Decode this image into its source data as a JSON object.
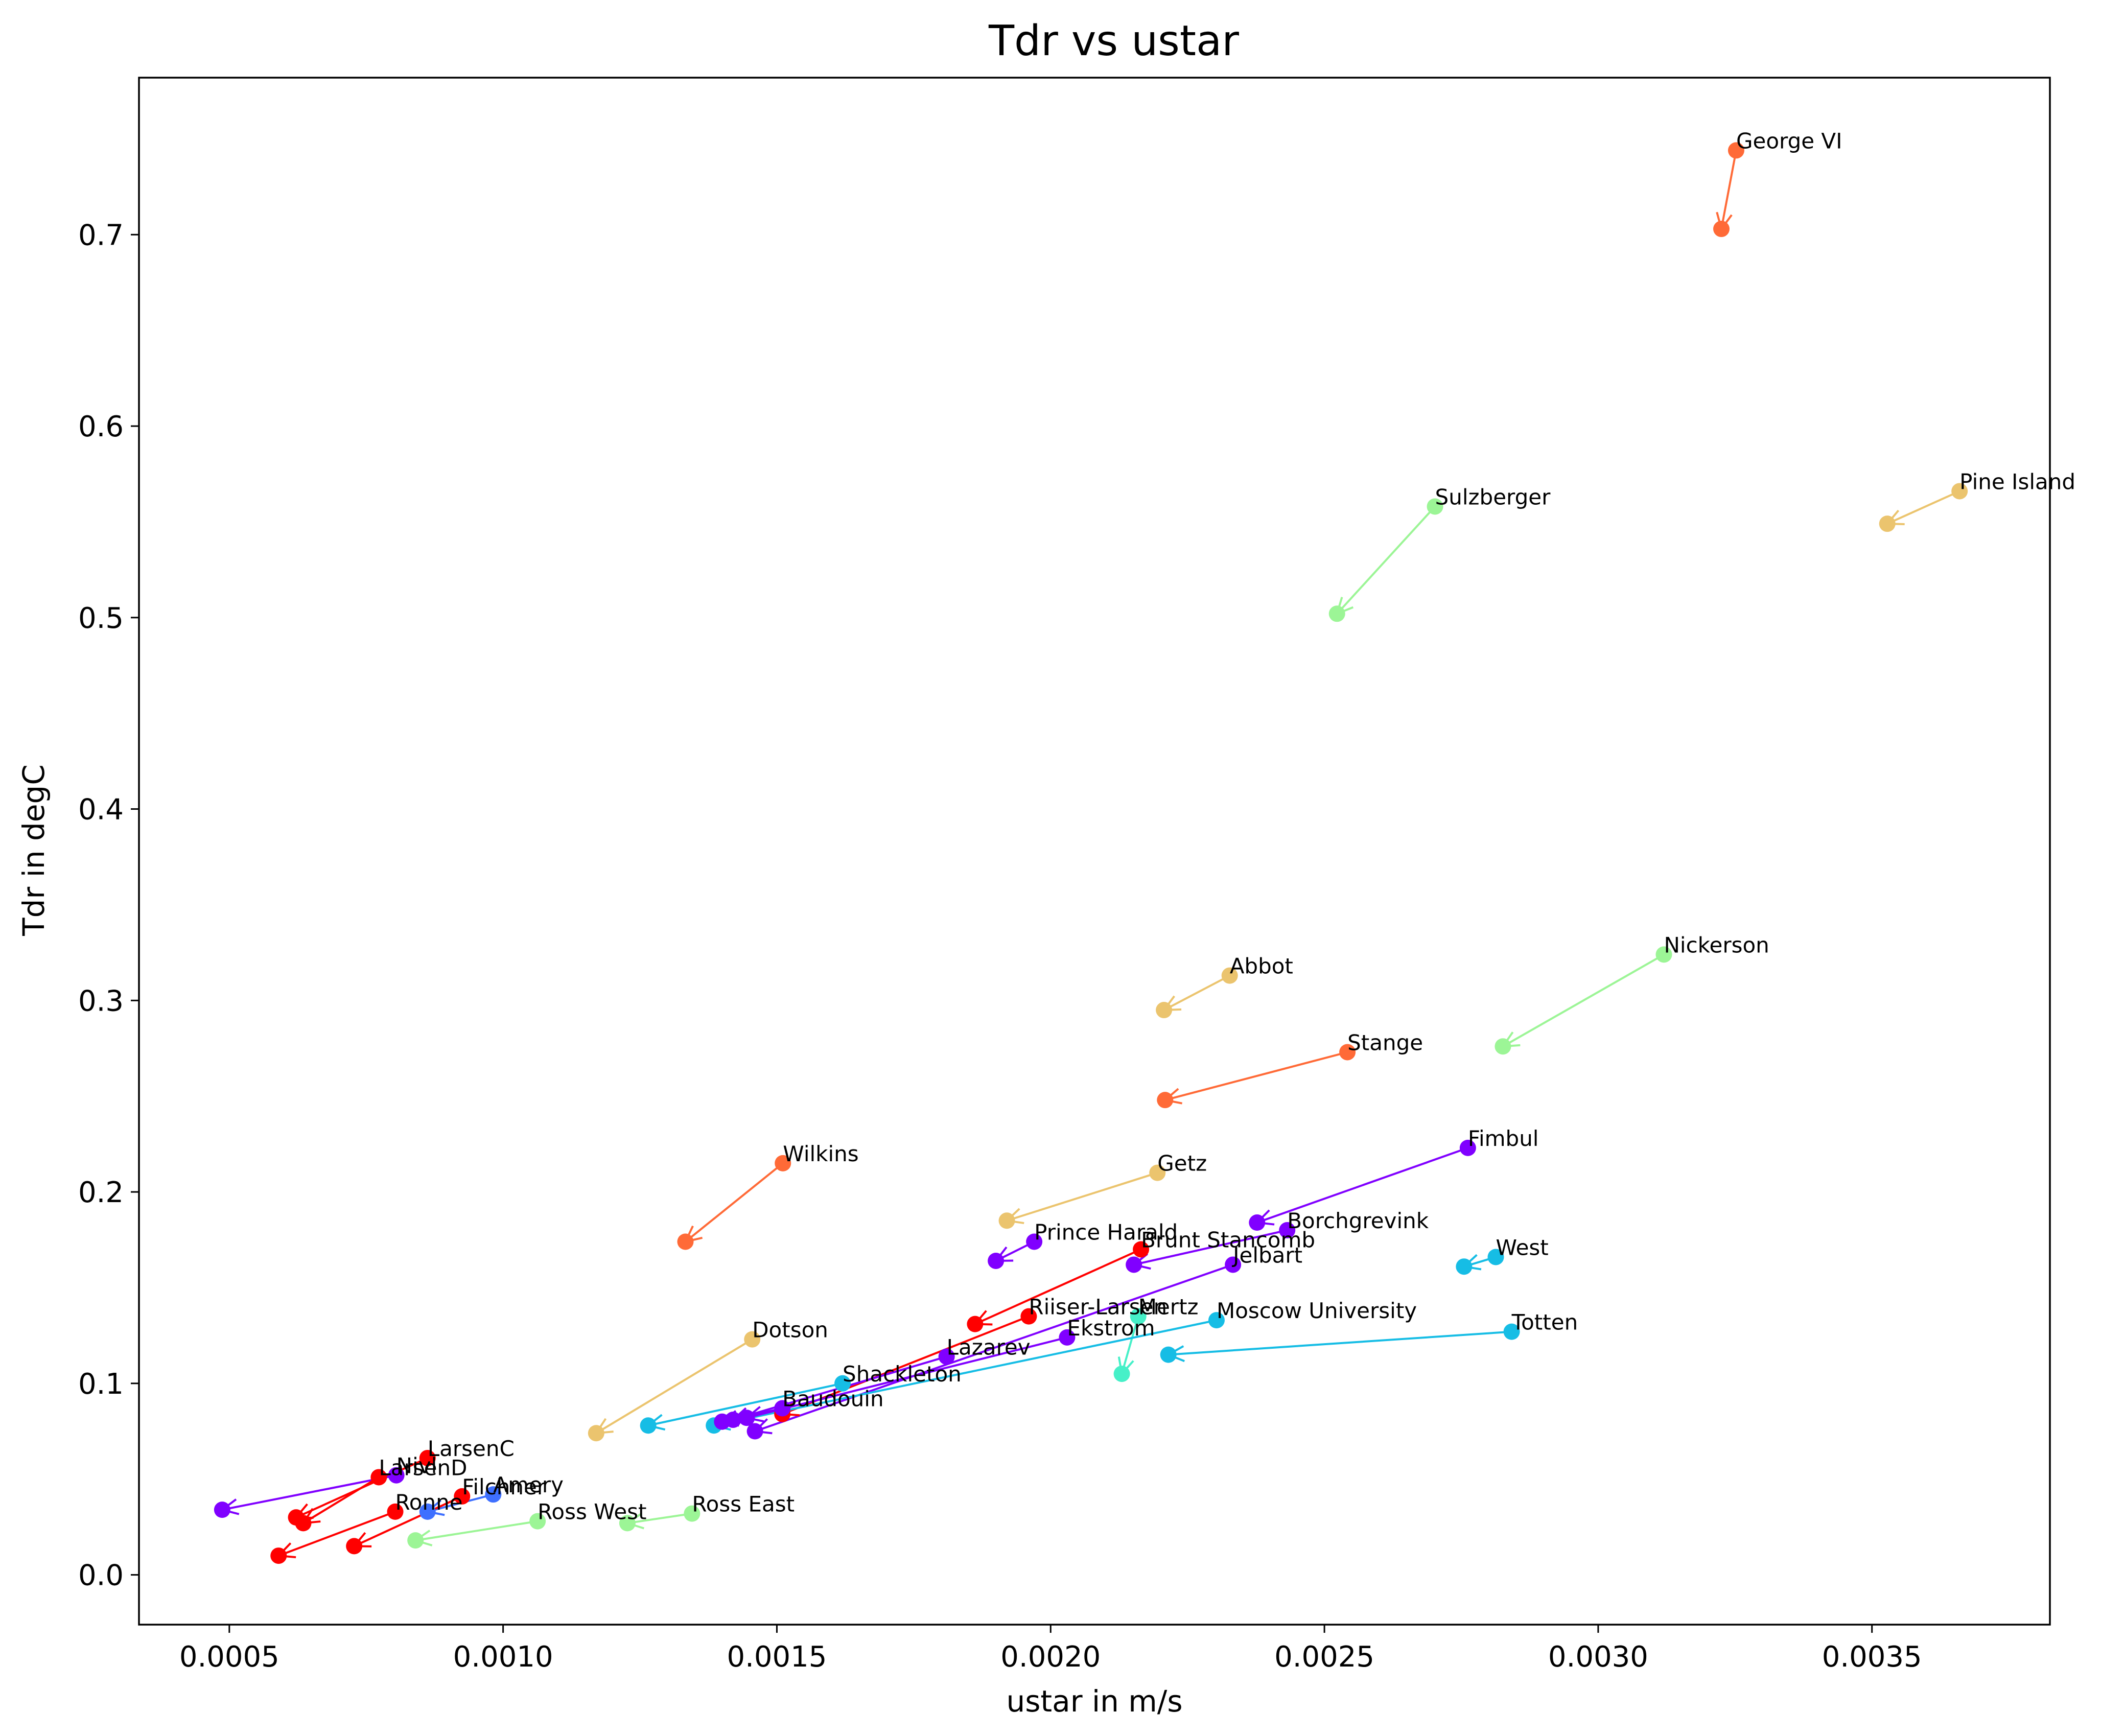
{
  "chart_data": {
    "type": "scatter",
    "title": "Tdr vs ustar",
    "xlabel": "ustar in m/s",
    "ylabel": "Tdr in degC",
    "xlim": [
      0.000335,
      0.003825
    ],
    "ylim": [
      -0.026,
      0.782
    ],
    "xticks": [
      0.0005,
      0.001,
      0.0015,
      0.002,
      0.0025,
      0.003,
      0.0035
    ],
    "xtick_labels": [
      "0.0005",
      "0.0010",
      "0.0015",
      "0.0020",
      "0.0025",
      "0.0030",
      "0.0035"
    ],
    "yticks": [
      0.0,
      0.1,
      0.2,
      0.3,
      0.4,
      0.5,
      0.6,
      0.7
    ],
    "ytick_labels": [
      "0.0",
      "0.1",
      "0.2",
      "0.3",
      "0.4",
      "0.5",
      "0.6",
      "0.7"
    ],
    "grid": false,
    "series": [
      {
        "name": "George VI",
        "color": "#ff6a37",
        "from": [
          0.003252,
          0.744
        ],
        "to": [
          0.003225,
          0.703
        ]
      },
      {
        "name": "Pine Island",
        "color": "#ebc46e",
        "from": [
          0.00366,
          0.566
        ],
        "to": [
          0.003528,
          0.549
        ]
      },
      {
        "name": "Sulzberger",
        "color": "#9cf596",
        "from": [
          0.002702,
          0.558
        ],
        "to": [
          0.002523,
          0.502
        ]
      },
      {
        "name": "Nickerson",
        "color": "#9cf596",
        "from": [
          0.00312,
          0.324
        ],
        "to": [
          0.002826,
          0.276
        ]
      },
      {
        "name": "Abbot",
        "color": "#ebc46e",
        "from": [
          0.002327,
          0.313
        ],
        "to": [
          0.002207,
          0.295
        ]
      },
      {
        "name": "Stange",
        "color": "#ff6a37",
        "from": [
          0.002542,
          0.273
        ],
        "to": [
          0.002209,
          0.248
        ]
      },
      {
        "name": "Fimbul",
        "color": "#8000ff",
        "from": [
          0.002762,
          0.223
        ],
        "to": [
          0.002377,
          0.184
        ]
      },
      {
        "name": "Wilkins",
        "color": "#ff6a37",
        "from": [
          0.001511,
          0.215
        ],
        "to": [
          0.001333,
          0.174
        ]
      },
      {
        "name": "Getz",
        "color": "#ebc46e",
        "from": [
          0.002195,
          0.21
        ],
        "to": [
          0.00192,
          0.185
        ]
      },
      {
        "name": "Borchgrevink",
        "color": "#8000ff",
        "from": [
          0.002432,
          0.18
        ],
        "to": [
          0.002152,
          0.162
        ]
      },
      {
        "name": "West",
        "color": "#16bde5",
        "from": [
          0.002813,
          0.166
        ],
        "to": [
          0.002755,
          0.161
        ]
      },
      {
        "name": "Prince Harald",
        "color": "#8000ff",
        "from": [
          0.00197,
          0.174
        ],
        "to": [
          0.0019,
          0.164
        ]
      },
      {
        "name": "Brunt Stancomb",
        "color": "#ff0000",
        "from": [
          0.002165,
          0.17
        ],
        "to": [
          0.001862,
          0.131
        ]
      },
      {
        "name": "Jelbart",
        "color": "#8000ff",
        "from": [
          0.002333,
          0.162
        ],
        "to": [
          0.00146,
          0.075
        ]
      },
      {
        "name": "Riiser-Larsen",
        "color": "#ff0000",
        "from": [
          0.00196,
          0.135
        ],
        "to": [
          0.00151,
          0.084
        ]
      },
      {
        "name": "Mertz",
        "color": "#46f0c8",
        "from": [
          0.00216,
          0.135
        ],
        "to": [
          0.00213,
          0.105
        ]
      },
      {
        "name": "Moscow University",
        "color": "#16bde5",
        "from": [
          0.002303,
          0.133
        ],
        "to": [
          0.001385,
          0.078
        ]
      },
      {
        "name": "Totten",
        "color": "#16bde5",
        "from": [
          0.002842,
          0.127
        ],
        "to": [
          0.002215,
          0.115
        ]
      },
      {
        "name": "Ekstrom",
        "color": "#8000ff",
        "from": [
          0.00203,
          0.124
        ],
        "to": [
          0.001445,
          0.082
        ]
      },
      {
        "name": "Dotson",
        "color": "#ebc46e",
        "from": [
          0.001455,
          0.123
        ],
        "to": [
          0.00117,
          0.074
        ]
      },
      {
        "name": "Lazarev",
        "color": "#8000ff",
        "from": [
          0.00181,
          0.114
        ],
        "to": [
          0.00142,
          0.081
        ]
      },
      {
        "name": "Shackleton",
        "color": "#16bde5",
        "from": [
          0.00162,
          0.1
        ],
        "to": [
          0.001265,
          0.078
        ]
      },
      {
        "name": "Baudouin",
        "color": "#8000ff",
        "from": [
          0.00151,
          0.087
        ],
        "to": [
          0.0014,
          0.08
        ]
      },
      {
        "name": "LarsenC",
        "color": "#ff0000",
        "from": [
          0.000862,
          0.061
        ],
        "to": [
          0.000622,
          0.03
        ]
      },
      {
        "name": "Nivl",
        "color": "#8000ff",
        "from": [
          0.000805,
          0.052
        ],
        "to": [
          0.000487,
          0.034
        ]
      },
      {
        "name": "LarsenD",
        "color": "#ff0000",
        "from": [
          0.000773,
          0.051
        ],
        "to": [
          0.000635,
          0.027
        ]
      },
      {
        "name": "Amery",
        "color": "#3f70ff",
        "from": [
          0.000982,
          0.042
        ],
        "to": [
          0.000862,
          0.033
        ]
      },
      {
        "name": "Filchner",
        "color": "#ff0000",
        "from": [
          0.000925,
          0.041
        ],
        "to": [
          0.000728,
          0.015
        ]
      },
      {
        "name": "Ronne",
        "color": "#ff0000",
        "from": [
          0.000803,
          0.033
        ],
        "to": [
          0.00059,
          0.01
        ]
      },
      {
        "name": "Ross East",
        "color": "#9cf596",
        "from": [
          0.001345,
          0.032
        ],
        "to": [
          0.001227,
          0.027
        ]
      },
      {
        "name": "Ross West",
        "color": "#9cf596",
        "from": [
          0.001063,
          0.028
        ],
        "to": [
          0.00084,
          0.018
        ]
      }
    ]
  }
}
